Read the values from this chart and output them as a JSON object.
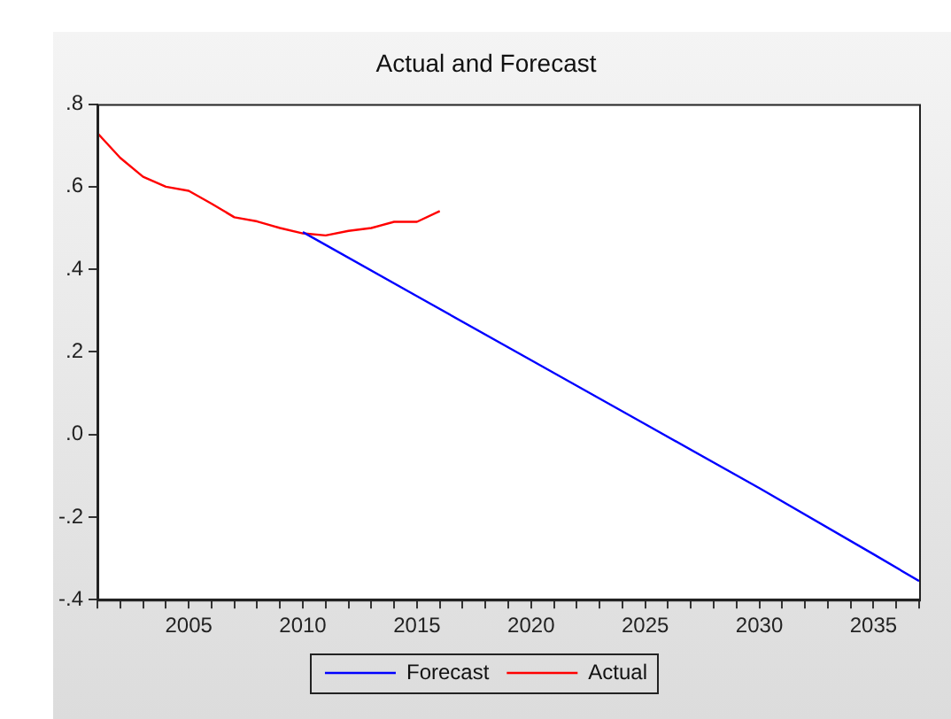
{
  "chart_data": {
    "type": "line",
    "title": "Actual and Forecast",
    "series": [
      {
        "name": "Forecast",
        "color": "#0000ff",
        "x": [
          2010,
          2015,
          2020,
          2025,
          2030,
          2035,
          2037
        ],
        "values": [
          0.49,
          0.335,
          0.18,
          0.025,
          -0.13,
          -0.29,
          -0.355
        ]
      },
      {
        "name": "Actual",
        "color": "#ff0000",
        "x": [
          2001,
          2002,
          2003,
          2004,
          2005,
          2006,
          2007,
          2008,
          2009,
          2010,
          2011,
          2012,
          2013,
          2014,
          2015,
          2016
        ],
        "values": [
          0.73,
          0.67,
          0.624,
          0.6,
          0.59,
          0.559,
          0.526,
          0.516,
          0.5,
          0.487,
          0.482,
          0.493,
          0.5,
          0.515,
          0.515,
          0.541
        ]
      }
    ],
    "xlim": [
      2001,
      2037
    ],
    "xticks": [
      {
        "value": 2001,
        "label": null
      },
      {
        "value": 2002,
        "label": null
      },
      {
        "value": 2003,
        "label": null
      },
      {
        "value": 2004,
        "label": null
      },
      2005,
      {
        "value": 2006,
        "label": null
      },
      {
        "value": 2007,
        "label": null
      },
      {
        "value": 2008,
        "label": null
      },
      {
        "value": 2009,
        "label": null
      },
      2010,
      {
        "value": 2011,
        "label": null
      },
      {
        "value": 2012,
        "label": null
      },
      {
        "value": 2013,
        "label": null
      },
      {
        "value": 2014,
        "label": null
      },
      2015,
      {
        "value": 2016,
        "label": null
      },
      {
        "value": 2017,
        "label": null
      },
      {
        "value": 2018,
        "label": null
      },
      {
        "value": 2019,
        "label": null
      },
      2020,
      {
        "value": 2021,
        "label": null
      },
      {
        "value": 2022,
        "label": null
      },
      {
        "value": 2023,
        "label": null
      },
      {
        "value": 2024,
        "label": null
      },
      2025,
      {
        "value": 2026,
        "label": null
      },
      {
        "value": 2027,
        "label": null
      },
      {
        "value": 2028,
        "label": null
      },
      {
        "value": 2029,
        "label": null
      },
      2030,
      {
        "value": 2031,
        "label": null
      },
      {
        "value": 2032,
        "label": null
      },
      {
        "value": 2033,
        "label": null
      },
      {
        "value": 2034,
        "label": null
      },
      2035,
      {
        "value": 2036,
        "label": null
      },
      {
        "value": 2037,
        "label": null
      }
    ],
    "ylim": [
      -0.4,
      0.8
    ],
    "yticks": [
      {
        "value": -0.4,
        "label": "-.4"
      },
      {
        "value": -0.2,
        "label": "-.2"
      },
      {
        "value": 0,
        "label": ".0"
      },
      {
        "value": 0.2,
        "label": ".2"
      },
      {
        "value": 0.4,
        "label": ".4"
      },
      {
        "value": 0.6,
        "label": ".6"
      },
      {
        "value": 0.8,
        "label": ".8"
      }
    ],
    "grid": false,
    "legend": "bottom",
    "marker": "none",
    "line_style": "solid"
  }
}
